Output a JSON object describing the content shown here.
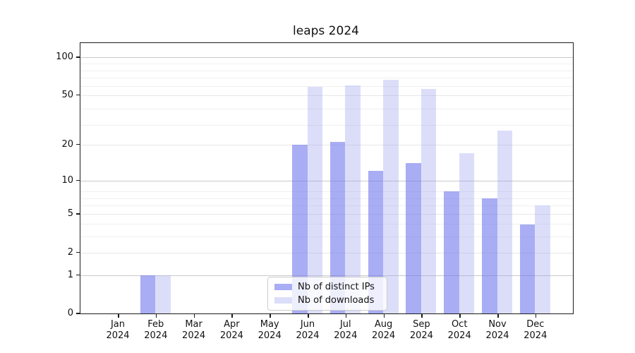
{
  "chart_data": {
    "type": "bar",
    "title": "leaps 2024",
    "categories": [
      {
        "month": "Jan",
        "year": "2024"
      },
      {
        "month": "Feb",
        "year": "2024"
      },
      {
        "month": "Mar",
        "year": "2024"
      },
      {
        "month": "Apr",
        "year": "2024"
      },
      {
        "month": "May",
        "year": "2024"
      },
      {
        "month": "Jun",
        "year": "2024"
      },
      {
        "month": "Jul",
        "year": "2024"
      },
      {
        "month": "Aug",
        "year": "2024"
      },
      {
        "month": "Sep",
        "year": "2024"
      },
      {
        "month": "Oct",
        "year": "2024"
      },
      {
        "month": "Nov",
        "year": "2024"
      },
      {
        "month": "Dec",
        "year": "2024"
      }
    ],
    "series": [
      {
        "name": "Nb of distinct IPs",
        "color": "rgba(116,123,237,0.62)",
        "color_on_white": "#a9adf4",
        "values": [
          0,
          1,
          0,
          0,
          0,
          20,
          21,
          12,
          14,
          8,
          7,
          4
        ]
      },
      {
        "name": "Nb of downloads",
        "color": "rgba(155,161,238,0.35)",
        "color_on_white": "#dcdef9",
        "values": [
          0,
          1,
          0,
          0,
          0,
          58,
          60,
          66,
          56,
          17,
          26,
          6
        ]
      }
    ],
    "y_ticks": [
      0,
      1,
      2,
      5,
      10,
      20,
      50,
      100
    ],
    "y_scale": "log10(1+x)",
    "ylim": [
      0,
      130
    ],
    "grid": "horizontal",
    "legend_position": "lower-center-inside"
  }
}
